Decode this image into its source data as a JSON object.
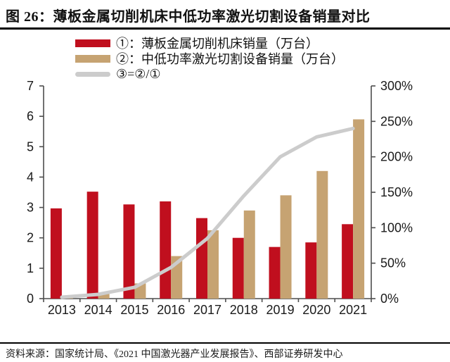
{
  "header": {
    "title": "图 26：薄板金属切削机床中低功率激光切割设备销量对比"
  },
  "legend": [
    {
      "label": "①：薄板金属切削机床销量（万台）",
      "swatch": "red-bar"
    },
    {
      "label": "②：中低功率激光切割设备销量（万台）",
      "swatch": "tan-bar"
    },
    {
      "label": "③=②/①",
      "swatch": "gray-line"
    }
  ],
  "colors": {
    "red": "#C00F1E",
    "tan": "#C6A372",
    "gray_line": "#CCCCCC",
    "axis": "#4D4D4D",
    "text": "#1A1A1A"
  },
  "chart_data": {
    "type": "bar",
    "subtype": "grouped bars with ratio line on secondary axis",
    "categories": [
      "2013",
      "2014",
      "2015",
      "2016",
      "2017",
      "2018",
      "2019",
      "2020",
      "2021"
    ],
    "series": [
      {
        "name": "①：薄板金属切削机床销量（万台）",
        "type": "bar",
        "axis": "left",
        "color_key": "red",
        "values": [
          2.97,
          3.52,
          3.1,
          3.2,
          2.65,
          2.0,
          1.7,
          1.85,
          2.45
        ]
      },
      {
        "name": "②：中低功率激光切割设备销量（万台）",
        "type": "bar",
        "axis": "left",
        "color_key": "tan",
        "values": [
          0.05,
          0.2,
          0.5,
          1.4,
          2.25,
          2.9,
          3.4,
          4.2,
          5.9
        ]
      },
      {
        "name": "③=②/①",
        "type": "line",
        "axis": "right",
        "color_key": "gray_line",
        "values_pct": [
          2,
          6,
          16,
          44,
          85,
          145,
          200,
          228,
          240
        ]
      }
    ],
    "left_axis": {
      "min": 0,
      "max": 7,
      "step": 1,
      "ticks": [
        "0",
        "1",
        "2",
        "3",
        "4",
        "5",
        "6",
        "7"
      ]
    },
    "right_axis": {
      "min": 0,
      "max": 300,
      "step": 50,
      "ticks": [
        "0%",
        "50%",
        "100%",
        "150%",
        "200%",
        "250%",
        "300%"
      ]
    },
    "grid": false,
    "legend_position": "top-left"
  },
  "footer": {
    "source": "资料来源：国家统计局、《2021 中国激光器产业发展报告》、西部证券研发中心"
  }
}
